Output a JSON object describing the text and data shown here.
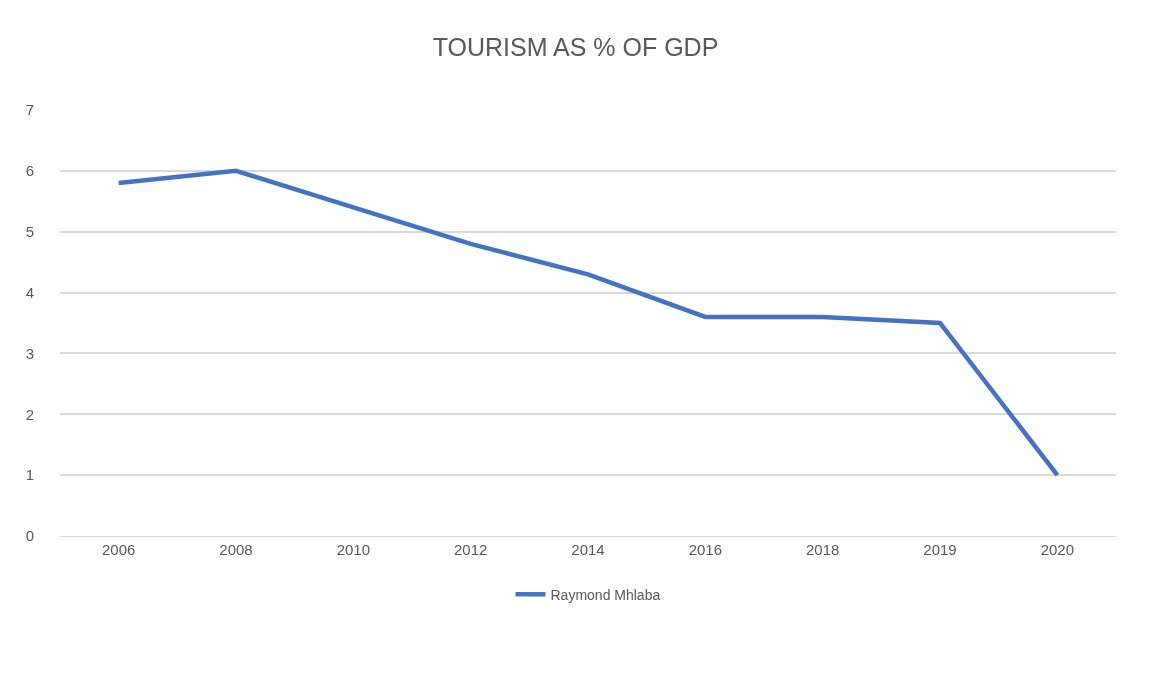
{
  "chart_data": {
    "type": "line",
    "title": "TOURISM AS % OF GDP",
    "categories": [
      "2006",
      "2008",
      "2010",
      "2012",
      "2014",
      "2016",
      "2018",
      "2019",
      "2020"
    ],
    "series": [
      {
        "name": "Raymond Mhlaba",
        "color": "#4472c4",
        "values": [
          5.8,
          6.0,
          5.4,
          4.8,
          4.3,
          3.6,
          3.6,
          3.5,
          1.0
        ]
      }
    ],
    "ylim": [
      0,
      7
    ],
    "yticks": [
      0,
      1,
      2,
      3,
      4,
      5,
      6,
      7
    ],
    "grid": "y",
    "legend": "bottom",
    "marker": "none",
    "line_style": "solid"
  }
}
